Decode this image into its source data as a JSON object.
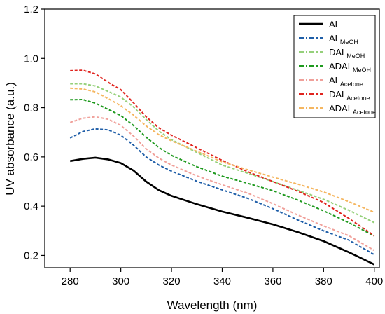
{
  "chart_data": {
    "type": "line",
    "xlabel": "Wavelength (nm)",
    "ylabel": "UV absorbance (a.u.)",
    "xlim": [
      270,
      402
    ],
    "ylim": [
      0.15,
      1.2
    ],
    "xticks": [
      280,
      300,
      320,
      340,
      360,
      380,
      400
    ],
    "yticks": [
      0.2,
      0.4,
      0.6,
      0.8,
      1.0,
      1.2
    ],
    "xtick_labels": [
      "280",
      "300",
      "320",
      "340",
      "360",
      "380",
      "400"
    ],
    "ytick_labels": [
      "0.2",
      "0.4",
      "0.6",
      "0.8",
      "1.0",
      "1.2"
    ],
    "legend_position": "top-right",
    "series": [
      {
        "name": "AL",
        "sub": "",
        "color": "#000000",
        "style": "solid",
        "x": [
          280,
          285,
          290,
          295,
          300,
          305,
          310,
          315,
          320,
          330,
          340,
          350,
          360,
          370,
          380,
          390,
          400
        ],
        "y": [
          0.583,
          0.592,
          0.597,
          0.59,
          0.575,
          0.545,
          0.5,
          0.465,
          0.442,
          0.408,
          0.378,
          0.353,
          0.326,
          0.294,
          0.258,
          0.213,
          0.163
        ]
      },
      {
        "name": "AL",
        "sub": "MeOH",
        "color": "#1f5ea8",
        "style": "dashed",
        "x": [
          280,
          285,
          290,
          295,
          300,
          305,
          310,
          315,
          320,
          330,
          340,
          350,
          360,
          370,
          380,
          390,
          400
        ],
        "y": [
          0.677,
          0.703,
          0.714,
          0.71,
          0.688,
          0.648,
          0.6,
          0.567,
          0.542,
          0.501,
          0.466,
          0.432,
          0.39,
          0.343,
          0.3,
          0.262,
          0.203
        ]
      },
      {
        "name": "DAL",
        "sub": "MeOH",
        "color": "#95d07a",
        "style": "dashed",
        "x": [
          280,
          285,
          290,
          295,
          300,
          305,
          310,
          315,
          320,
          330,
          340,
          350,
          360,
          370,
          380,
          390,
          400
        ],
        "y": [
          0.897,
          0.897,
          0.888,
          0.866,
          0.843,
          0.803,
          0.752,
          0.705,
          0.67,
          0.618,
          0.567,
          0.534,
          0.5,
          0.464,
          0.428,
          0.383,
          0.333
        ]
      },
      {
        "name": "ADAL",
        "sub": "MeOH",
        "color": "#1f9a1f",
        "style": "dashed",
        "x": [
          280,
          285,
          290,
          295,
          300,
          305,
          310,
          315,
          320,
          330,
          340,
          350,
          360,
          370,
          380,
          390,
          400
        ],
        "y": [
          0.832,
          0.833,
          0.818,
          0.793,
          0.768,
          0.728,
          0.68,
          0.638,
          0.606,
          0.56,
          0.522,
          0.493,
          0.463,
          0.424,
          0.381,
          0.333,
          0.279
        ]
      },
      {
        "name": "AL",
        "sub": "Acetone",
        "color": "#f0a09a",
        "style": "dashed",
        "x": [
          280,
          285,
          290,
          295,
          300,
          305,
          310,
          315,
          320,
          330,
          340,
          350,
          360,
          370,
          380,
          390,
          400
        ],
        "y": [
          0.74,
          0.757,
          0.763,
          0.753,
          0.728,
          0.685,
          0.633,
          0.595,
          0.567,
          0.523,
          0.487,
          0.453,
          0.41,
          0.363,
          0.32,
          0.28,
          0.22
        ]
      },
      {
        "name": "DAL",
        "sub": "Acetone",
        "color": "#e0241f",
        "style": "dashed",
        "x": [
          280,
          285,
          290,
          295,
          300,
          305,
          310,
          315,
          320,
          330,
          340,
          350,
          360,
          370,
          380,
          390,
          400
        ],
        "y": [
          0.95,
          0.952,
          0.937,
          0.903,
          0.873,
          0.82,
          0.763,
          0.718,
          0.688,
          0.637,
          0.586,
          0.54,
          0.5,
          0.46,
          0.415,
          0.35,
          0.28
        ]
      },
      {
        "name": "ADAL",
        "sub": "Acetone",
        "color": "#f5b660",
        "style": "dashed",
        "x": [
          280,
          285,
          290,
          295,
          300,
          305,
          310,
          315,
          320,
          330,
          340,
          350,
          360,
          370,
          380,
          390,
          400
        ],
        "y": [
          0.879,
          0.876,
          0.864,
          0.837,
          0.808,
          0.77,
          0.726,
          0.69,
          0.665,
          0.623,
          0.58,
          0.548,
          0.518,
          0.489,
          0.458,
          0.418,
          0.375
        ]
      }
    ]
  }
}
